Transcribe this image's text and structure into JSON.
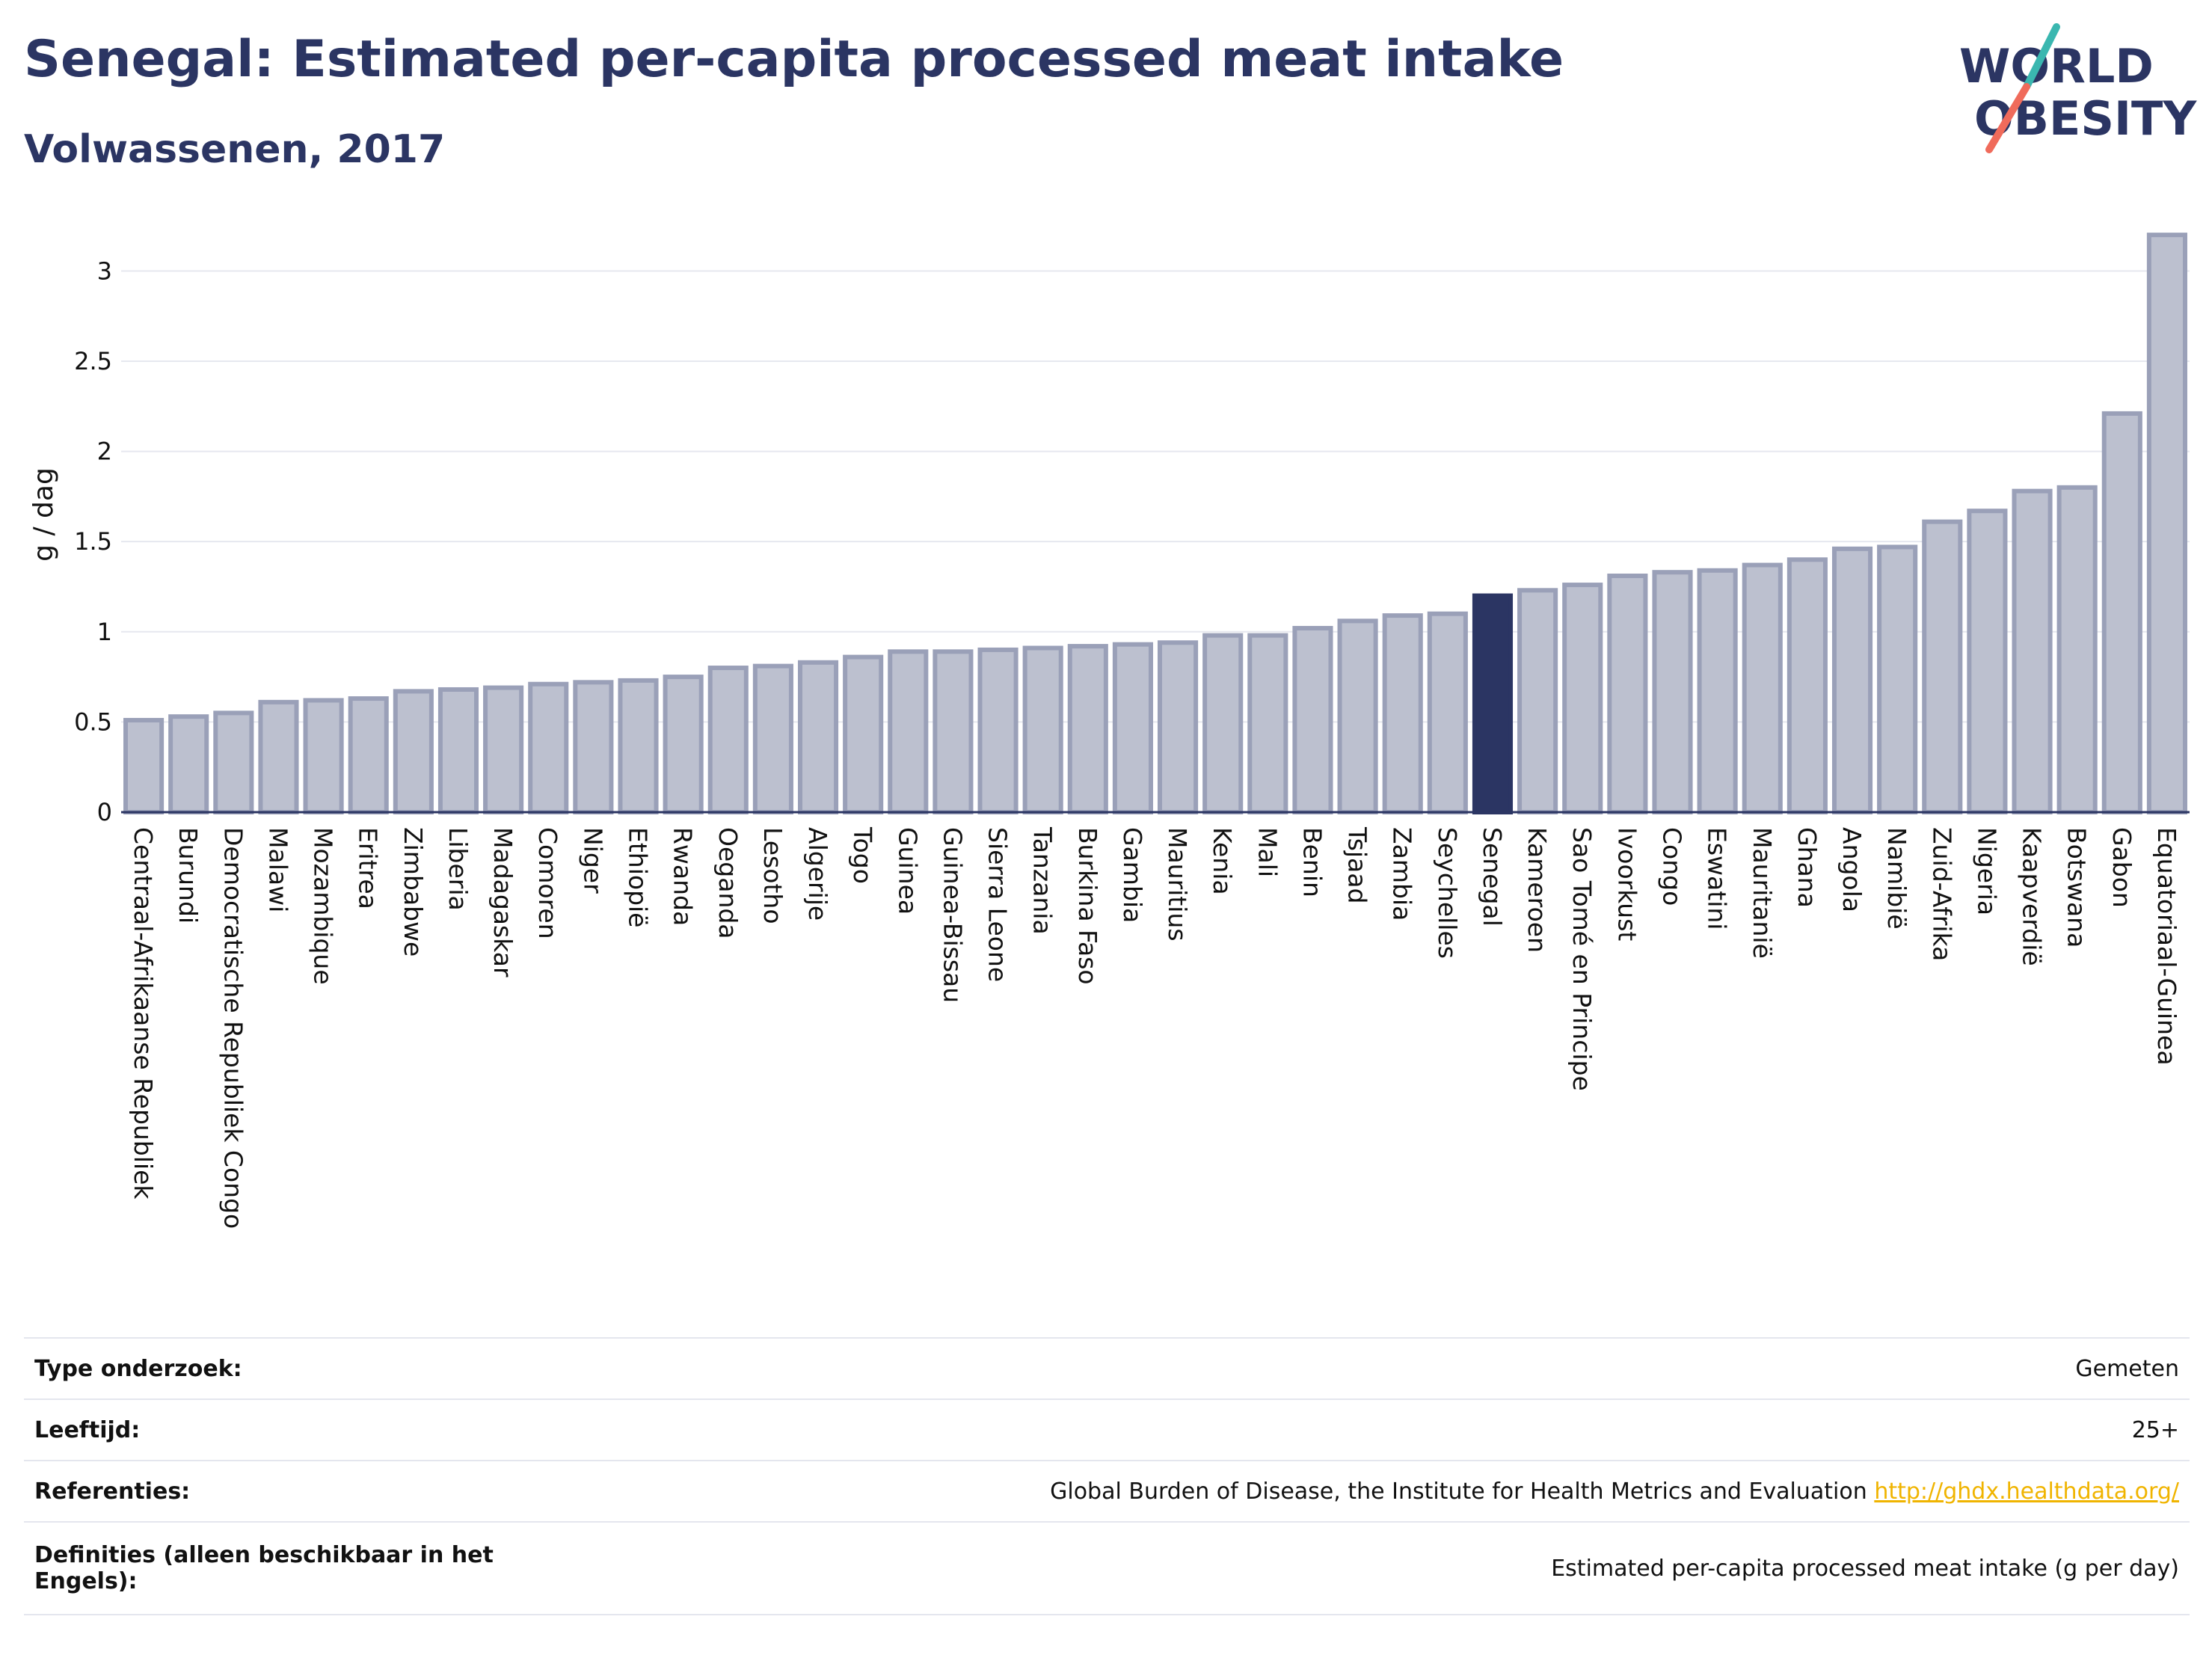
{
  "header": {
    "title": "Senegal: Estimated per-capita processed meat intake",
    "subtitle": "Volwassenen, 2017"
  },
  "logo": {
    "line1": "WORLD",
    "line2": "OBESITY",
    "colors": {
      "text": "#2b3563",
      "slash_top": "#3ab7b0",
      "slash_bottom": "#f06b5b"
    }
  },
  "chart_data": {
    "type": "bar",
    "ylabel": "g / dag",
    "ylim": [
      0,
      3.3
    ],
    "yticks": [
      0,
      0.5,
      1,
      1.5,
      2,
      2.5,
      3
    ],
    "ytick_labels": [
      "0",
      "0.5",
      "1",
      "1.5",
      "2",
      "2.5",
      "3"
    ],
    "grid": true,
    "highlight": "Senegal",
    "colors": {
      "bar": "#bcc0cf",
      "bar_edge": "#9aa0b8",
      "highlight": "#2b3563",
      "grid": "#e6e8ef"
    },
    "categories": [
      "Centraal-Afrikaanse Republiek",
      "Burundi",
      "Democratische Republiek Congo",
      "Malawi",
      "Mozambique",
      "Eritrea",
      "Zimbabwe",
      "Liberia",
      "Madagaskar",
      "Comoren",
      "Niger",
      "Ethiopië",
      "Rwanda",
      "Oeganda",
      "Lesotho",
      "Algerije",
      "Togo",
      "Guinea",
      "Guinea-Bissau",
      "Sierra Leone",
      "Tanzania",
      "Burkina Faso",
      "Gambia",
      "Mauritius",
      "Kenia",
      "Mali",
      "Benin",
      "Tsjaad",
      "Zambia",
      "Seychelles",
      "Senegal",
      "Kameroen",
      "Sao Tomé en Principe",
      "Ivoorkust",
      "Congo",
      "Eswatini",
      "Mauritanië",
      "Ghana",
      "Angola",
      "Namibië",
      "Zuid-Afrika",
      "Nigeria",
      "Kaapverdië",
      "Botswana",
      "Gabon",
      "Equatoriaal-Guinea"
    ],
    "values": [
      0.51,
      0.53,
      0.55,
      0.61,
      0.62,
      0.63,
      0.67,
      0.68,
      0.69,
      0.71,
      0.72,
      0.73,
      0.75,
      0.8,
      0.81,
      0.83,
      0.86,
      0.89,
      0.89,
      0.9,
      0.91,
      0.92,
      0.93,
      0.94,
      0.98,
      0.98,
      1.02,
      1.06,
      1.09,
      1.1,
      1.2,
      1.23,
      1.26,
      1.31,
      1.33,
      1.34,
      1.37,
      1.4,
      1.46,
      1.47,
      1.61,
      1.67,
      1.78,
      1.8,
      2.21,
      3.2
    ]
  },
  "info": [
    {
      "key": "Type onderzoek:",
      "value": "Gemeten"
    },
    {
      "key": "Leeftijd:",
      "value": "25+"
    },
    {
      "key": "Referenties:",
      "value": "Global Burden of Disease, the Institute for Health Metrics and Evaluation",
      "link": "http://ghdx.healthdata.org/"
    },
    {
      "key": "Definities (alleen beschikbaar in het Engels):",
      "value": "Estimated per-capita processed meat intake (g per day)"
    }
  ]
}
